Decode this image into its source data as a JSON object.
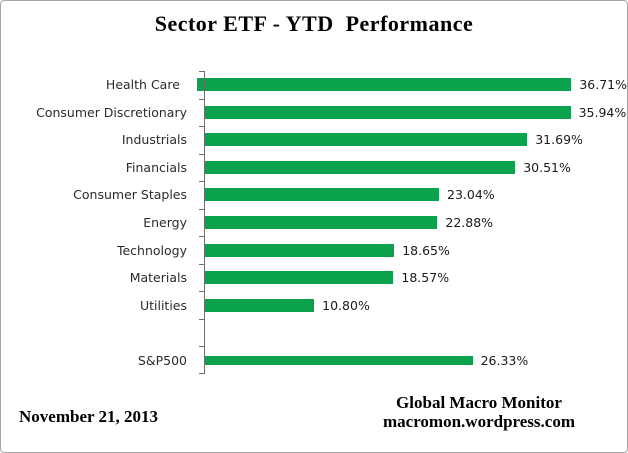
{
  "title": "Sector ETF - YTD  Performance",
  "footer": {
    "date": "November 21, 2013",
    "credit_line1": "Global Macro Monitor",
    "credit_line2": "macromon.wordpress.com"
  },
  "chart_data": {
    "type": "bar",
    "orientation": "horizontal",
    "title": "Sector ETF - YTD  Performance",
    "xlabel": "",
    "ylabel": "",
    "xlim": [
      0,
      40
    ],
    "grid": false,
    "legend": false,
    "bar_color": "#0ba24d",
    "axis_color": "#6e6e6e",
    "categories": [
      "Health Care",
      "Consumer Discretionary",
      "Industrials",
      "Financials",
      "Consumer Staples",
      "Energy",
      "Technology",
      "Materials",
      "Utilities",
      "",
      "S&P500"
    ],
    "values": [
      36.71,
      35.94,
      31.69,
      30.51,
      23.04,
      22.88,
      18.65,
      18.57,
      10.8,
      null,
      26.33
    ],
    "rows": [
      {
        "label": "Health Care",
        "value": 36.71,
        "display": "36.71%",
        "series": "sector"
      },
      {
        "label": "Consumer Discretionary",
        "value": 35.94,
        "display": "35.94%",
        "series": "sector"
      },
      {
        "label": "Industrials",
        "value": 31.69,
        "display": "31.69%",
        "series": "sector"
      },
      {
        "label": "Financials",
        "value": 30.51,
        "display": "30.51%",
        "series": "sector"
      },
      {
        "label": "Consumer Staples",
        "value": 23.04,
        "display": "23.04%",
        "series": "sector"
      },
      {
        "label": "Energy",
        "value": 22.88,
        "display": "22.88%",
        "series": "sector"
      },
      {
        "label": "Technology",
        "value": 18.65,
        "display": "18.65%",
        "series": "sector"
      },
      {
        "label": "Materials",
        "value": 18.57,
        "display": "18.57%",
        "series": "sector"
      },
      {
        "label": "Utilities",
        "value": 10.8,
        "display": "10.80%",
        "series": "sector"
      },
      {
        "label": "",
        "value": null,
        "display": "",
        "series": "spacer"
      },
      {
        "label": "S&P500",
        "value": 26.33,
        "display": "26.33%",
        "series": "benchmark"
      }
    ]
  }
}
